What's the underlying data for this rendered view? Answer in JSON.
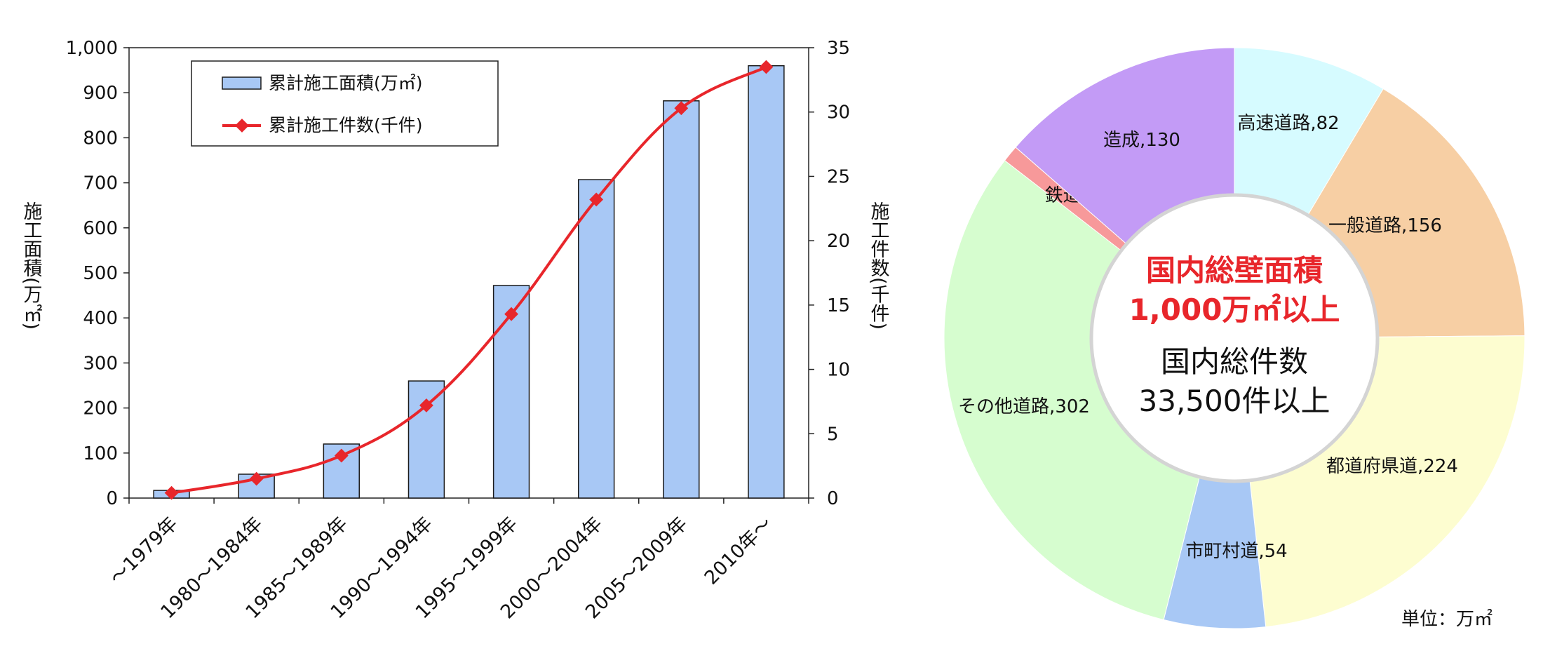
{
  "chart_data": [
    {
      "type": "bar",
      "categories": [
        "～1979年",
        "1980～1984年",
        "1985～1989年",
        "1990～1994年",
        "1995～1999年",
        "2000～2004年",
        "2005～2009年",
        "2010年～"
      ],
      "series": [
        {
          "name": "累計施工面積(万㎡)",
          "type": "bar",
          "axis": "left",
          "color": "#a8c8f5",
          "values": [
            17,
            53,
            120,
            260,
            472,
            707,
            882,
            960
          ]
        },
        {
          "name": "累計施工件数(千件)",
          "type": "line",
          "axis": "right",
          "color": "#e8262b",
          "values": [
            0.4,
            1.5,
            3.3,
            7.2,
            14.3,
            23.2,
            30.3,
            33.5
          ]
        }
      ],
      "y_left": {
        "label": "施工面積(万㎡)",
        "ylim": [
          0,
          1000
        ],
        "ticks": [
          "0",
          "100",
          "200",
          "300",
          "400",
          "500",
          "600",
          "700",
          "800",
          "900",
          "1,000"
        ]
      },
      "y_right": {
        "label": "施工件数(千件)",
        "ylim": [
          0,
          35
        ],
        "ticks": [
          "0",
          "5",
          "10",
          "15",
          "20",
          "25",
          "30",
          "35"
        ]
      },
      "legend": {
        "placement": "top-left"
      },
      "grid": false
    },
    {
      "type": "pie",
      "donut": true,
      "unit": "単位：万㎡",
      "slices": [
        {
          "label": "高速道路",
          "value": 82,
          "color": "#d6fbff"
        },
        {
          "label": "一般道路",
          "value": 156,
          "color": "#f7cfa4"
        },
        {
          "label": "都道府県道",
          "value": 224,
          "color": "#fdfdd0"
        },
        {
          "label": "市町村道",
          "value": 54,
          "color": "#a8c8f5"
        },
        {
          "label": "その他道路",
          "value": 302,
          "color": "#d6fdcf"
        },
        {
          "label": "鉄道",
          "value": 9,
          "color": "#f7999a"
        },
        {
          "label": "造成",
          "value": 130,
          "color": "#c39bf6"
        }
      ],
      "center": {
        "line1": "国内総壁面積",
        "line2": "1,000万㎡以上",
        "line3": "国内総件数",
        "line4": "33,500件以上"
      }
    }
  ]
}
